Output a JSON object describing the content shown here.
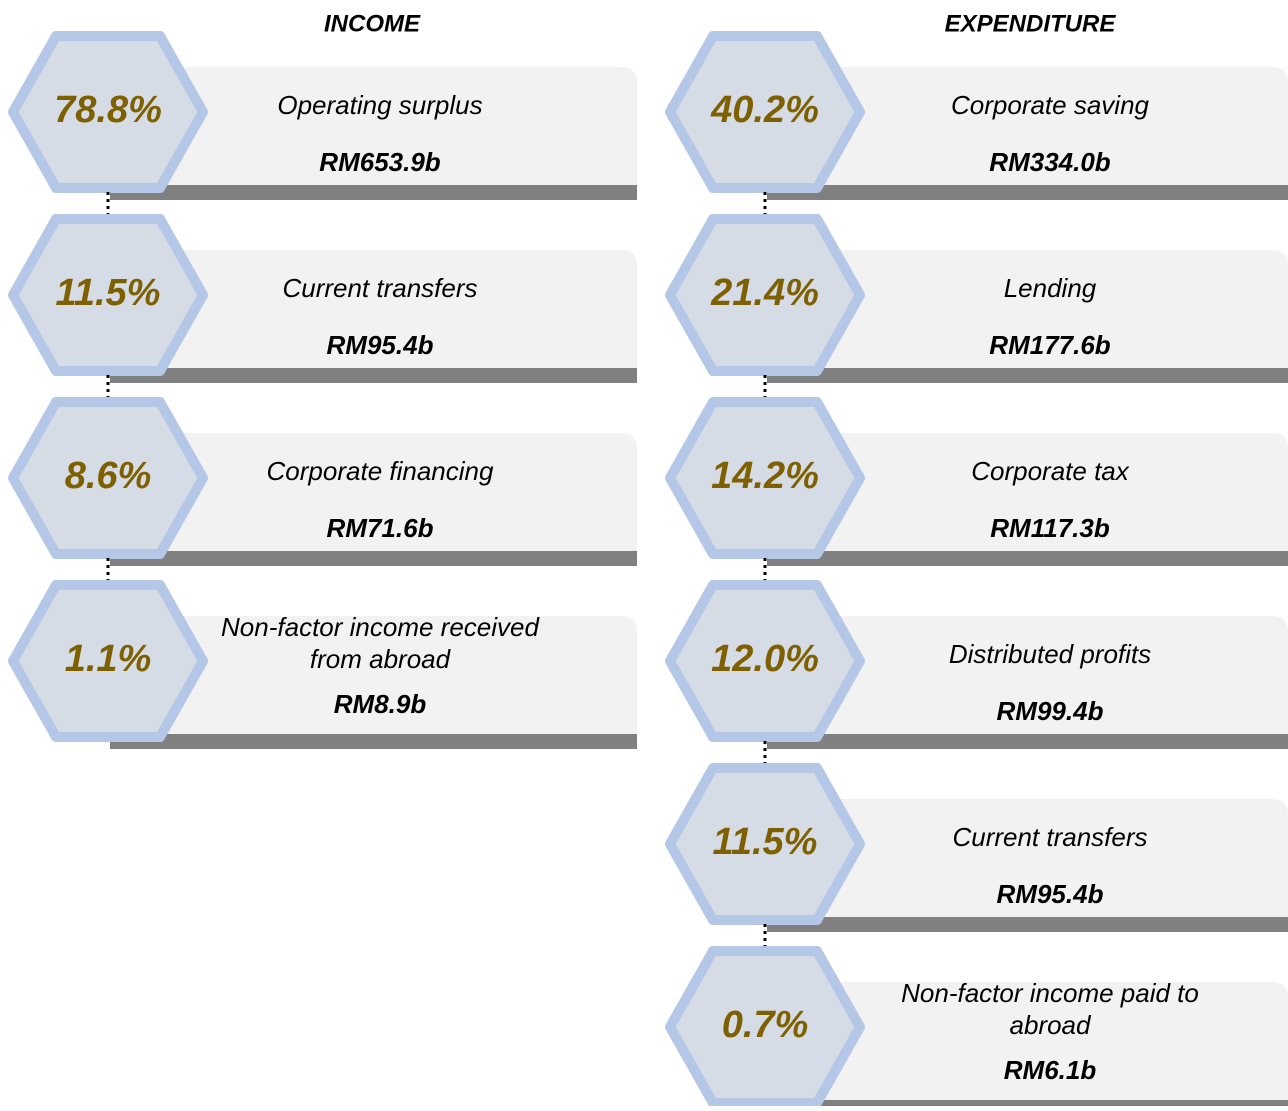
{
  "income": {
    "title": "INCOME",
    "items": [
      {
        "percent": "78.8%",
        "label_lines": [
          "Operating surplus"
        ],
        "amount": "RM653.9b"
      },
      {
        "percent": "11.5%",
        "label_lines": [
          "Current transfers"
        ],
        "amount": "RM95.4b"
      },
      {
        "percent": "8.6%",
        "label_lines": [
          "Corporate financing"
        ],
        "amount": "RM71.6b"
      },
      {
        "percent": "1.1%",
        "label_lines": [
          "Non-factor income received",
          "from abroad"
        ],
        "amount": "RM8.9b"
      }
    ]
  },
  "expenditure": {
    "title": "EXPENDITURE",
    "items": [
      {
        "percent": "40.2%",
        "label_lines": [
          "Corporate saving"
        ],
        "amount": "RM334.0b"
      },
      {
        "percent": "21.4%",
        "label_lines": [
          "Lending"
        ],
        "amount": "RM177.6b"
      },
      {
        "percent": "14.2%",
        "label_lines": [
          "Corporate tax"
        ],
        "amount": "RM117.3b"
      },
      {
        "percent": "12.0%",
        "label_lines": [
          "Distributed profits"
        ],
        "amount": "RM99.4b"
      },
      {
        "percent": "11.5%",
        "label_lines": [
          "Current transfers"
        ],
        "amount": "RM95.4b"
      },
      {
        "percent": "0.7%",
        "label_lines": [
          "Non-factor income paid to",
          "abroad"
        ],
        "amount": "RM6.1b"
      }
    ]
  }
}
